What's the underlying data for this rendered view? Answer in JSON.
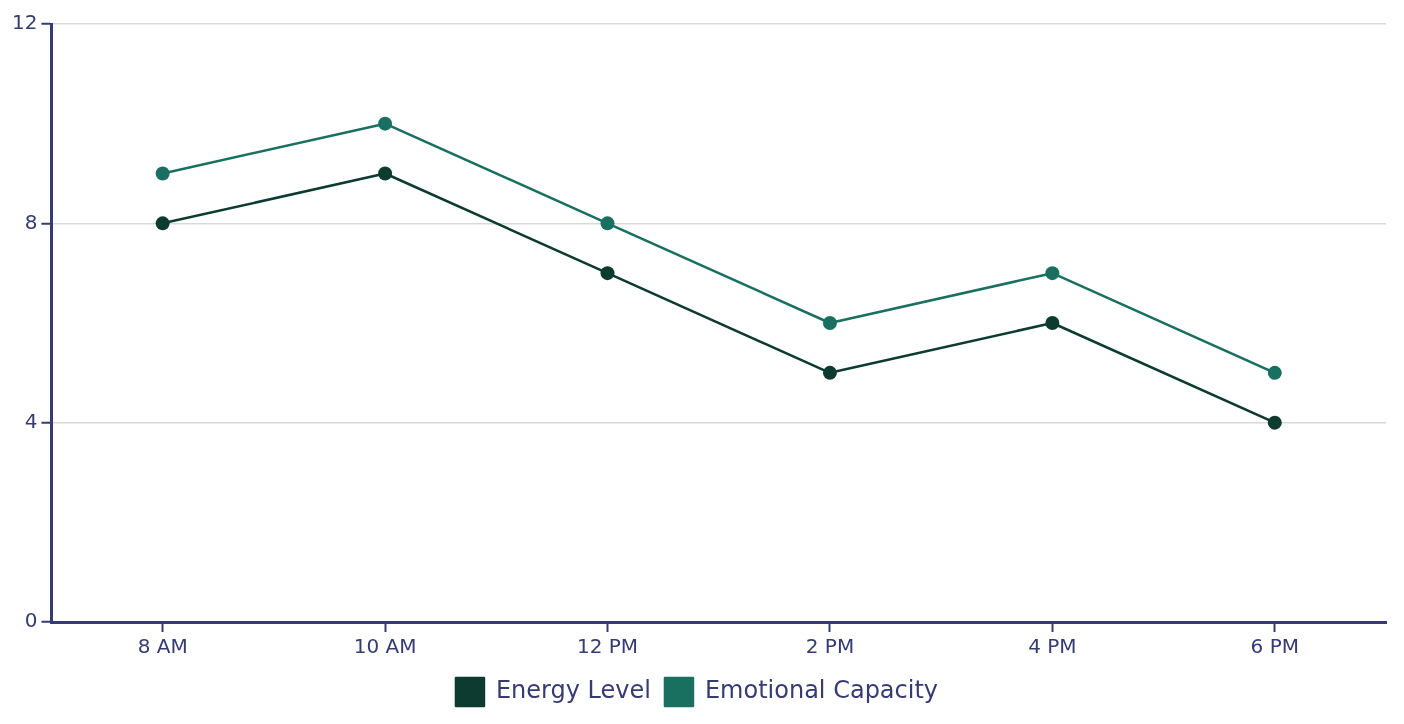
{
  "chart_data": {
    "type": "line",
    "categories": [
      "8 AM",
      "10 AM",
      "12 PM",
      "2 PM",
      "4 PM",
      "6 PM"
    ],
    "series": [
      {
        "name": "Energy Level",
        "color": "#0d3b30",
        "values": [
          8,
          9,
          7,
          5,
          6,
          4
        ]
      },
      {
        "name": "Emotional Capacity",
        "color": "#1a7060",
        "values": [
          9,
          10,
          8,
          6,
          7,
          5
        ]
      }
    ],
    "ylim": [
      0,
      12
    ],
    "yticks": [
      0,
      4,
      8,
      12
    ],
    "grid": "y",
    "legend": "bottom",
    "marker": "circle",
    "line_style": "solid"
  }
}
